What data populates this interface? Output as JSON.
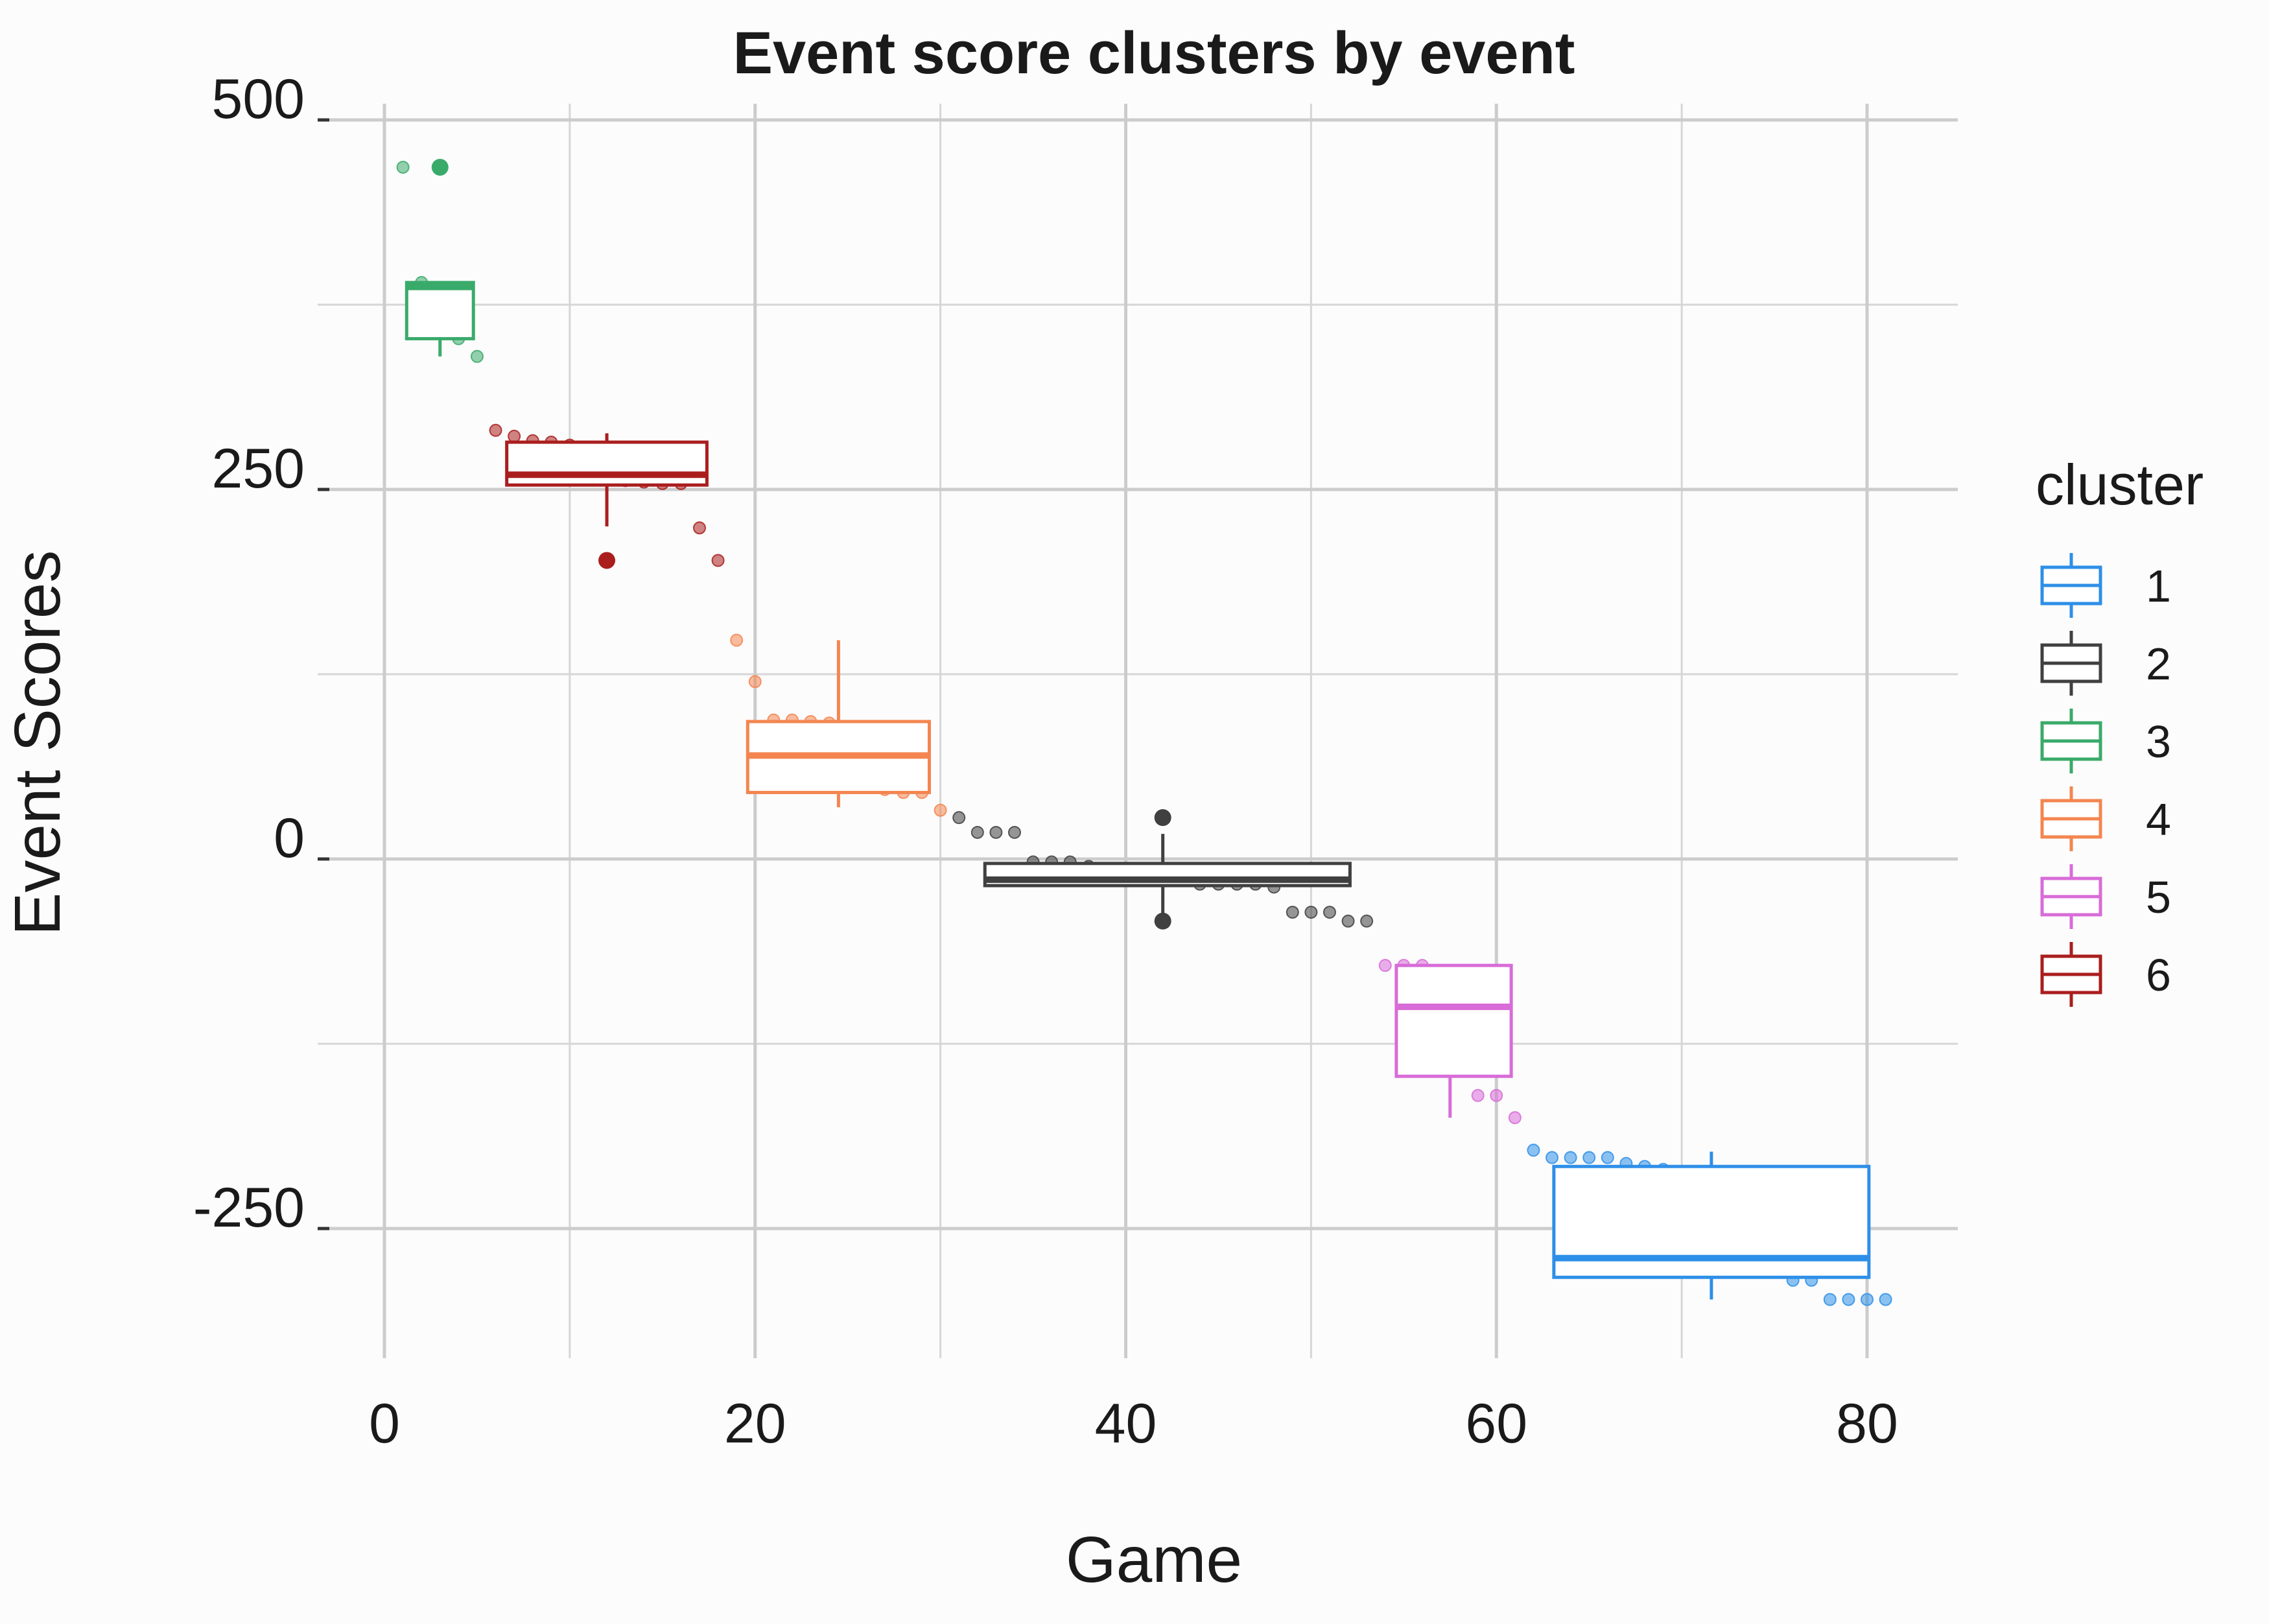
{
  "chart_data": {
    "type": "boxplot",
    "title": "Event score clusters by event",
    "xlabel": "Game",
    "ylabel": "Event Scores",
    "xlim": [
      -2.5,
      82.5
    ],
    "ylim": [
      -340,
      510
    ],
    "x_ticks": [
      0,
      20,
      40,
      60,
      80
    ],
    "x_tick_labels": [
      "0",
      "20",
      "40",
      "60",
      "80"
    ],
    "y_ticks": [
      -250,
      0,
      250,
      500
    ],
    "y_tick_labels": [
      "-250",
      "0",
      "250",
      "500"
    ],
    "x_minor_ticks": [
      10,
      30,
      50,
      70
    ],
    "y_minor_ticks": [
      -125,
      125,
      375
    ],
    "grid": true,
    "legend": {
      "title": "cluster",
      "position": "right",
      "entries": [
        {
          "label": "1",
          "color": "#2e8fe8"
        },
        {
          "label": "2",
          "color": "#404040"
        },
        {
          "label": "3",
          "color": "#3aaa6a"
        },
        {
          "label": "4",
          "color": "#f48550"
        },
        {
          "label": "5",
          "color": "#d86cd8"
        },
        {
          "label": "6",
          "color": "#aa1e1e"
        }
      ]
    },
    "clusters": [
      {
        "name": "3",
        "color": "#3aaa6a",
        "box": {
          "x_start": 1.2,
          "x_end": 4.8,
          "q1": 352,
          "median": 387,
          "q3": 390,
          "whisker_x": 3,
          "whisker_low": 340,
          "whisker_high": 390
        },
        "outliers": [
          {
            "x": 3,
            "y": 468
          }
        ],
        "points": [
          [
            1,
            468
          ],
          [
            2,
            390
          ],
          [
            3,
            468
          ],
          [
            4,
            352
          ],
          [
            5,
            340
          ]
        ]
      },
      {
        "name": "6",
        "color": "#aa1e1e",
        "box": {
          "x_start": 6.6,
          "x_end": 17.4,
          "q1": 253,
          "median": 260,
          "q3": 282,
          "whisker_x": 12,
          "whisker_low": 225,
          "whisker_high": 288
        },
        "outliers": [
          {
            "x": 12,
            "y": 202
          }
        ],
        "points": [
          [
            6,
            290
          ],
          [
            7,
            286
          ],
          [
            8,
            283
          ],
          [
            9,
            282
          ],
          [
            10,
            280
          ],
          [
            11,
            278
          ],
          [
            12,
            278
          ],
          [
            13,
            256
          ],
          [
            14,
            255
          ],
          [
            15,
            254
          ],
          [
            16,
            254
          ],
          [
            17,
            224
          ],
          [
            18,
            202
          ]
        ]
      },
      {
        "name": "4",
        "color": "#f48550",
        "box": {
          "x_start": 19.6,
          "x_end": 29.4,
          "q1": 45,
          "median": 70,
          "q3": 93,
          "whisker_x": 24.5,
          "whisker_low": 35,
          "whisker_high": 148
        },
        "outliers": [],
        "points": [
          [
            19,
            148
          ],
          [
            20,
            120
          ],
          [
            21,
            94
          ],
          [
            22,
            94
          ],
          [
            23,
            93
          ],
          [
            24,
            92
          ],
          [
            25,
            80
          ],
          [
            26,
            60
          ],
          [
            27,
            47
          ],
          [
            28,
            45
          ],
          [
            29,
            45
          ],
          [
            30,
            33
          ]
        ]
      },
      {
        "name": "2",
        "color": "#404040",
        "box": {
          "x_start": 32.4,
          "x_end": 52.1,
          "q1": -18,
          "median": -14,
          "q3": -3,
          "whisker_x": 42,
          "whisker_low": -42,
          "whisker_high": 17
        },
        "outliers": [
          {
            "x": 42,
            "y": 28
          },
          {
            "x": 42,
            "y": -42
          }
        ],
        "points": [
          [
            31,
            28
          ],
          [
            32,
            18
          ],
          [
            33,
            18
          ],
          [
            34,
            18
          ],
          [
            35,
            -2
          ],
          [
            36,
            -2
          ],
          [
            37,
            -2
          ],
          [
            38,
            -5
          ],
          [
            40,
            -8
          ],
          [
            42,
            28
          ],
          [
            42,
            -42
          ],
          [
            44,
            -17
          ],
          [
            45,
            -17
          ],
          [
            46,
            -17
          ],
          [
            47,
            -17
          ],
          [
            48,
            -19
          ],
          [
            49,
            -36
          ],
          [
            50,
            -36
          ],
          [
            51,
            -36
          ],
          [
            52,
            -42
          ],
          [
            53,
            -42
          ]
        ]
      },
      {
        "name": "5",
        "color": "#d86cd8",
        "box": {
          "x_start": 54.6,
          "x_end": 60.8,
          "q1": -147,
          "median": -100,
          "q3": -72,
          "whisker_x": 57.5,
          "whisker_low": -175,
          "whisker_high": -72
        },
        "outliers": [],
        "points": [
          [
            54,
            -72
          ],
          [
            55,
            -72
          ],
          [
            56,
            -72
          ],
          [
            57,
            -100
          ],
          [
            59,
            -160
          ],
          [
            60,
            -160
          ],
          [
            61,
            -175
          ]
        ]
      },
      {
        "name": "1",
        "color": "#2e8fe8",
        "box": {
          "x_start": 63.1,
          "x_end": 80.1,
          "q1": -283,
          "median": -270,
          "q3": -208,
          "whisker_x": 71.6,
          "whisker_low": -298,
          "whisker_high": -198
        },
        "outliers": [],
        "points": [
          [
            62,
            -197
          ],
          [
            63,
            -202
          ],
          [
            64,
            -202
          ],
          [
            65,
            -202
          ],
          [
            66,
            -202
          ],
          [
            67,
            -206
          ],
          [
            68,
            -208
          ],
          [
            69,
            -210
          ],
          [
            70,
            -215
          ],
          [
            71,
            -230
          ],
          [
            72,
            -250
          ],
          [
            73,
            -262
          ],
          [
            74,
            -270
          ],
          [
            75,
            -276
          ],
          [
            76,
            -285
          ],
          [
            77,
            -285
          ],
          [
            78,
            -298
          ],
          [
            79,
            -298
          ],
          [
            80,
            -298
          ],
          [
            81,
            -298
          ]
        ]
      }
    ]
  }
}
